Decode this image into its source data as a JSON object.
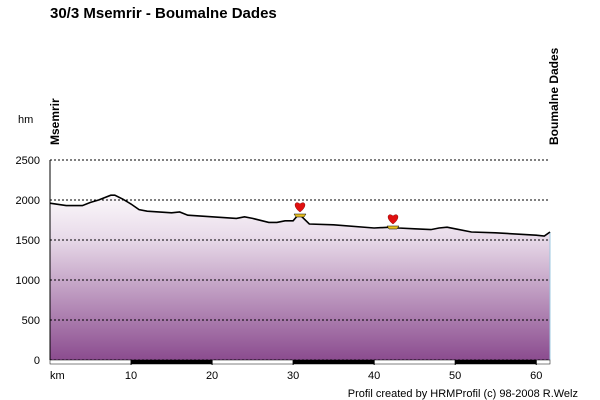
{
  "chart_data": {
    "type": "area",
    "title": "30/3 Msemrir - Boumalne Dades",
    "ylabel": "hm",
    "xlabel": "km",
    "start_label": "Msemrir",
    "end_label": "Boumalne Dades",
    "footer": "Profil created by HRMProfil (c) 98-2008 R.Welz",
    "x": [
      0,
      2,
      4,
      5,
      6,
      7.5,
      8,
      9,
      10,
      11,
      12,
      15,
      16,
      17,
      20,
      23,
      24,
      25,
      27,
      28,
      29,
      30,
      30.5,
      31,
      32,
      35,
      40,
      42,
      43,
      45,
      47,
      48,
      49,
      50,
      52,
      55,
      60,
      61,
      61.7
    ],
    "values": [
      1960,
      1930,
      1930,
      1970,
      2000,
      2060,
      2060,
      2010,
      1950,
      1880,
      1860,
      1840,
      1850,
      1810,
      1790,
      1770,
      1790,
      1770,
      1720,
      1720,
      1740,
      1740,
      1800,
      1800,
      1700,
      1690,
      1650,
      1660,
      1650,
      1640,
      1630,
      1650,
      1660,
      1640,
      1600,
      1590,
      1560,
      1550,
      1600
    ],
    "xlim": [
      0,
      61.7
    ],
    "ylim": [
      0,
      2500
    ],
    "xticks": [
      10,
      20,
      30,
      40,
      50,
      60
    ],
    "yticks": [
      0,
      500,
      1000,
      1500,
      2000,
      2500
    ],
    "grid": true,
    "color": "#000000"
  }
}
